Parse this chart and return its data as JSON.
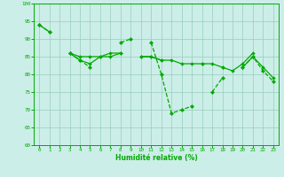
{
  "xlabel": "Humidité relative (%)",
  "xlim": [
    -0.5,
    23.5
  ],
  "ylim": [
    60,
    100
  ],
  "yticks": [
    60,
    65,
    70,
    75,
    80,
    85,
    90,
    95,
    100
  ],
  "xticks": [
    0,
    1,
    2,
    3,
    4,
    5,
    6,
    7,
    8,
    9,
    10,
    11,
    12,
    13,
    14,
    15,
    16,
    17,
    18,
    19,
    20,
    21,
    22,
    23
  ],
  "background_color": "#cceee8",
  "grid_color": "#99ccbb",
  "line_color": "#00aa00",
  "line1": [
    94,
    92,
    null,
    86,
    84,
    82,
    null,
    null,
    89,
    90,
    null,
    89,
    80,
    69,
    70,
    71,
    null,
    75,
    79,
    null,
    82,
    85,
    81,
    78
  ],
  "line2": [
    null,
    null,
    null,
    86,
    84,
    83,
    85,
    86,
    86,
    null,
    85,
    85,
    84,
    84,
    83,
    83,
    83,
    83,
    82,
    81,
    83,
    86,
    null,
    null
  ],
  "line3": [
    94,
    92,
    null,
    86,
    85,
    85,
    85,
    85,
    86,
    null,
    85,
    85,
    84,
    null,
    null,
    null,
    83,
    null,
    82,
    null,
    82,
    85,
    82,
    79
  ]
}
